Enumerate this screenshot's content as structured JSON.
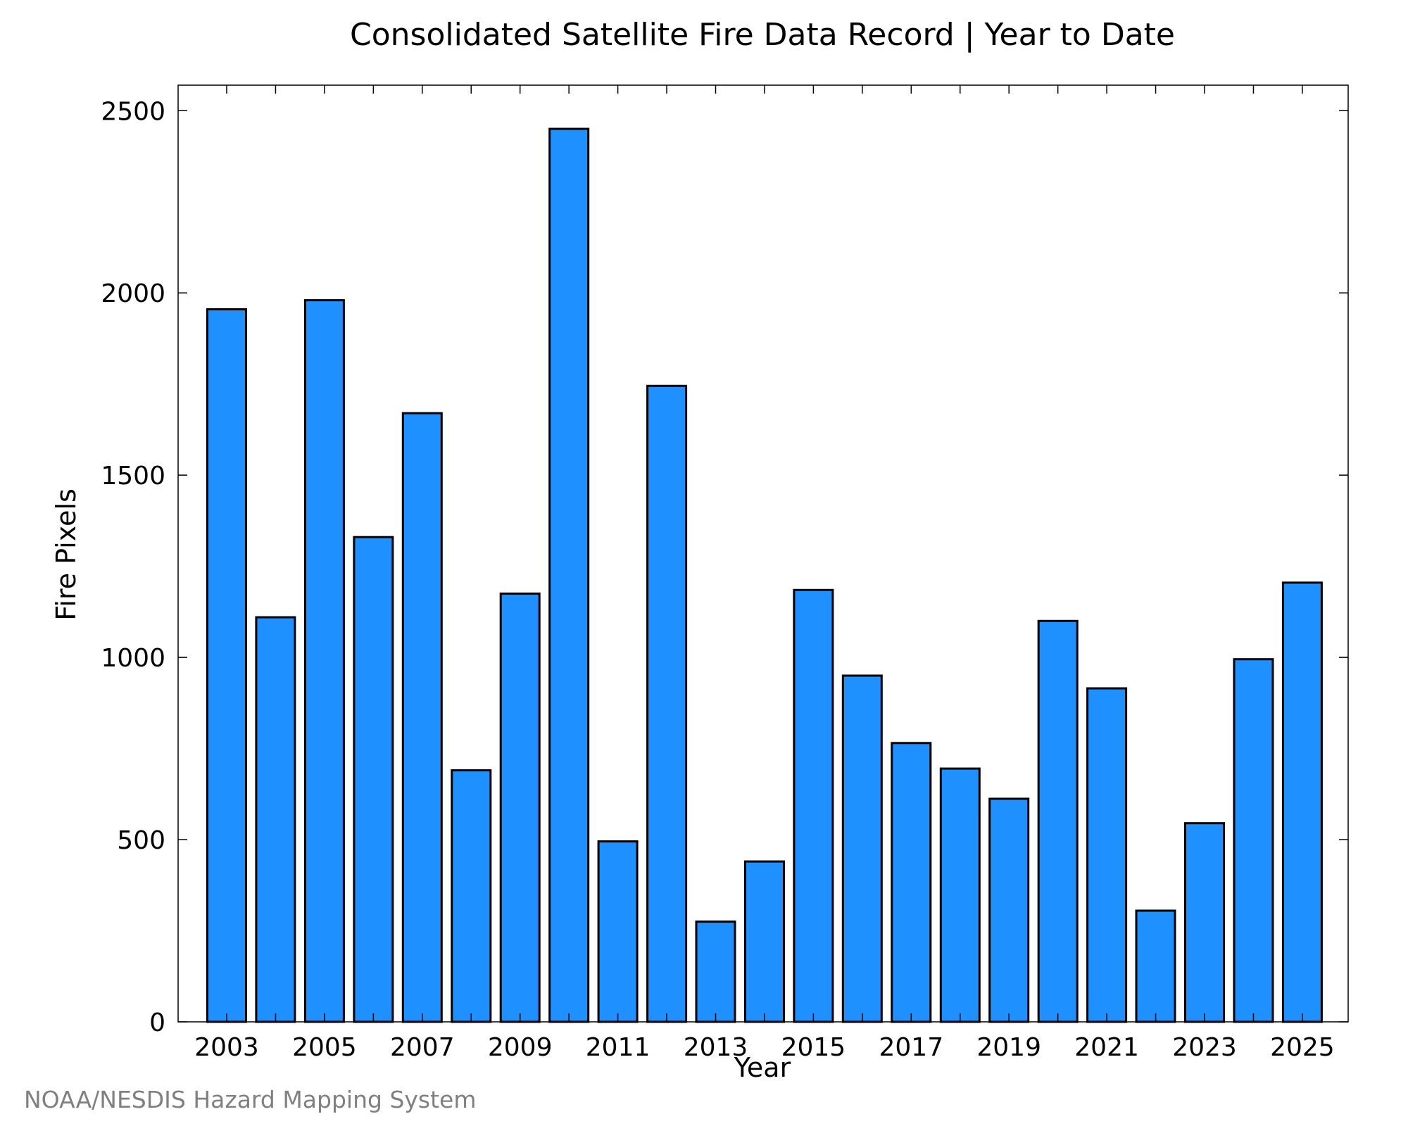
{
  "chart_data": {
    "type": "bar",
    "title": "Consolidated Satellite Fire Data Record | Year to Date",
    "xlabel": "Year",
    "ylabel": "Fire Pixels",
    "categories": [
      "2003",
      "2004",
      "2005",
      "2006",
      "2007",
      "2008",
      "2009",
      "2010",
      "2011",
      "2012",
      "2013",
      "2014",
      "2015",
      "2016",
      "2017",
      "2018",
      "2019",
      "2020",
      "2021",
      "2022",
      "2023",
      "2024",
      "2025"
    ],
    "x_tick_labels": [
      "2003",
      "2005",
      "2007",
      "2009",
      "2011",
      "2013",
      "2015",
      "2017",
      "2019",
      "2021",
      "2023",
      "2025"
    ],
    "values": [
      1955,
      1110,
      1980,
      1330,
      1670,
      690,
      1175,
      2450,
      495,
      1745,
      275,
      440,
      1185,
      950,
      765,
      695,
      612,
      1100,
      915,
      305,
      545,
      995,
      1205
    ],
    "ylim": [
      0,
      2570
    ],
    "y_ticks": [
      0,
      500,
      1000,
      1500,
      2000,
      2500
    ],
    "grid": false,
    "bar_color": "#1e90ff",
    "edge_color": "#000000",
    "source": "NOAA/NESDIS Hazard Mapping System"
  }
}
